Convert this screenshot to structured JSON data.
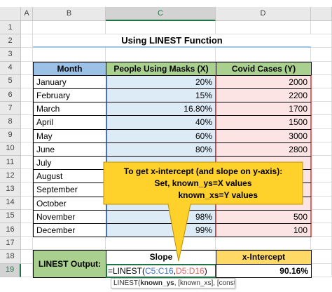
{
  "columns": [
    "A",
    "B",
    "C",
    "D"
  ],
  "rows": [
    "1",
    "2",
    "3",
    "4",
    "5",
    "6",
    "7",
    "8",
    "9",
    "10",
    "11",
    "12",
    "13",
    "14",
    "15",
    "16",
    "17",
    "18",
    "19"
  ],
  "title": "Using LINEST Function",
  "table": {
    "header": [
      "Month",
      "People Using Masks (X)",
      "Covid Cases (Y)"
    ],
    "rows": [
      [
        "January",
        "20%",
        "2000"
      ],
      [
        "February",
        "15%",
        "2200"
      ],
      [
        "March",
        "16.80%",
        "1700"
      ],
      [
        "April",
        "40%",
        "1500"
      ],
      [
        "May",
        "60%",
        "3000"
      ],
      [
        "June",
        "80%",
        "2800"
      ],
      [
        "July",
        null,
        null
      ],
      [
        "August",
        null,
        null
      ],
      [
        "September",
        null,
        null
      ],
      [
        "October",
        null,
        null
      ],
      [
        "November",
        "98%",
        "500"
      ],
      [
        "December",
        "99%",
        "100"
      ]
    ]
  },
  "output": {
    "label": "LINEST Output:",
    "slope_header": "Slope",
    "intercept_header": "x-Intercept",
    "formula": {
      "prefix": "=LINEST(",
      "ref1": "C5:C16",
      "sep": ",",
      "ref2": "D5:D16",
      "suffix": ")"
    },
    "intercept_value": "90.16%"
  },
  "callout": {
    "lines": [
      "To get x-intercept (and slope on y-axis):",
      "Set, known_ys=X values",
      "known_xs=Y values"
    ]
  },
  "tooltip": {
    "name": "LINEST(",
    "current_arg": "known_ys",
    "rest": ", [known_xs], [const], [stats])"
  }
}
